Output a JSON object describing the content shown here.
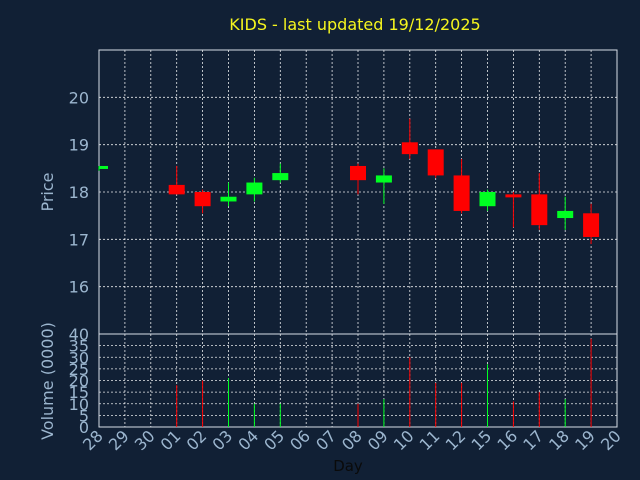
{
  "chart_data": {
    "type": "candlestick",
    "title": "KIDS - last updated 19/12/2025",
    "xlabel": "Day",
    "ylabel": "Price",
    "volume_label": "Volume (0000)",
    "grid": true,
    "colors": {
      "up": "#00ff22",
      "down": "#ff0000",
      "background": "#112035",
      "title": "#f5f51e",
      "axis_text": "#9cb6cf"
    },
    "days": [
      "28",
      "29",
      "30",
      "01",
      "02",
      "03",
      "04",
      "05",
      "06",
      "07",
      "08",
      "09",
      "10",
      "11",
      "12",
      "15",
      "16",
      "17",
      "18",
      "19",
      "20"
    ],
    "price_ticks": [
      "16",
      "17",
      "18",
      "19",
      "20"
    ],
    "price_ylim": [
      15,
      21
    ],
    "volume_ticks": [
      "0",
      "5",
      "10",
      "15",
      "20",
      "25",
      "30",
      "35",
      "40"
    ],
    "volume_ylim": [
      0,
      40
    ],
    "candles": [
      {
        "day": "28",
        "open": 18.5,
        "high": 18.55,
        "low": 18.45,
        "close": 18.55,
        "volume": 0
      },
      {
        "day": "01",
        "open": 18.15,
        "high": 18.55,
        "low": 17.95,
        "close": 17.95,
        "volume": 18
      },
      {
        "day": "02",
        "open": 18.0,
        "high": 18.05,
        "low": 17.55,
        "close": 17.7,
        "volume": 20
      },
      {
        "day": "03",
        "open": 17.8,
        "high": 18.2,
        "low": 17.7,
        "close": 17.9,
        "volume": 21
      },
      {
        "day": "04",
        "open": 17.95,
        "high": 18.3,
        "low": 17.8,
        "close": 18.2,
        "volume": 10
      },
      {
        "day": "05",
        "open": 18.25,
        "high": 18.6,
        "low": 18.2,
        "close": 18.4,
        "volume": 10
      },
      {
        "day": "08",
        "open": 18.55,
        "high": 18.6,
        "low": 17.95,
        "close": 18.25,
        "volume": 10
      },
      {
        "day": "09",
        "open": 18.2,
        "high": 18.5,
        "low": 17.75,
        "close": 18.35,
        "volume": 12
      },
      {
        "day": "10",
        "open": 19.05,
        "high": 19.55,
        "low": 18.7,
        "close": 18.8,
        "volume": 30
      },
      {
        "day": "11",
        "open": 18.9,
        "high": 18.9,
        "low": 18.3,
        "close": 18.35,
        "volume": 19
      },
      {
        "day": "12",
        "open": 18.35,
        "high": 18.7,
        "low": 17.55,
        "close": 17.6,
        "volume": 19
      },
      {
        "day": "15",
        "open": 17.7,
        "high": 18.05,
        "low": 17.6,
        "close": 18.0,
        "volume": 27
      },
      {
        "day": "16",
        "open": 17.95,
        "high": 18.0,
        "low": 17.25,
        "close": 17.9,
        "volume": 11
      },
      {
        "day": "17",
        "open": 17.95,
        "high": 18.4,
        "low": 17.2,
        "close": 17.3,
        "volume": 15
      },
      {
        "day": "18",
        "open": 17.45,
        "high": 17.9,
        "low": 17.2,
        "close": 17.6,
        "volume": 12
      },
      {
        "day": "19",
        "open": 17.55,
        "high": 17.75,
        "low": 16.9,
        "close": 17.05,
        "volume": 38
      }
    ]
  }
}
